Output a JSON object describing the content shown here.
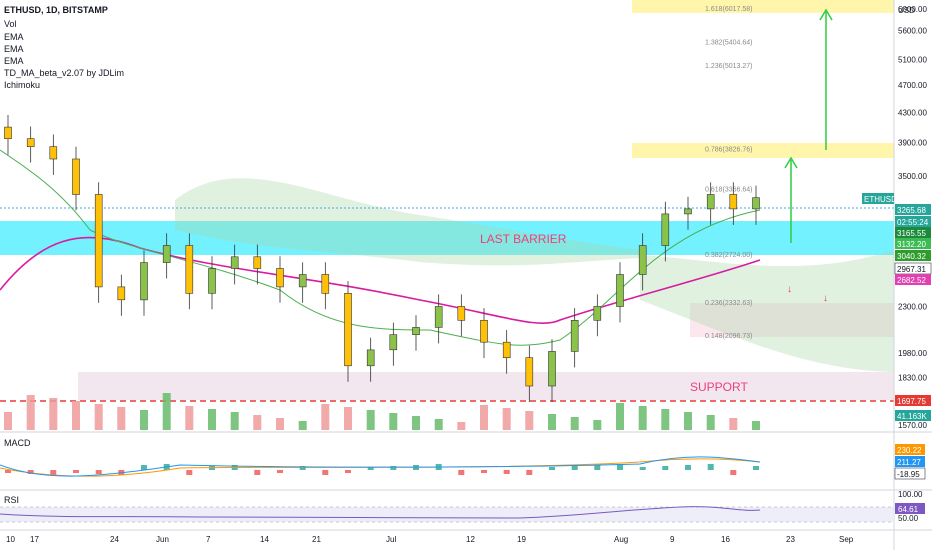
{
  "header": {
    "symbol": "ETHUSD, 1D, BITSTAMP",
    "indicators": [
      "Vol",
      "EMA",
      "EMA",
      "EMA",
      "TD_MA_beta_v2.07 by JDLim",
      "Ichimoku"
    ]
  },
  "currency": "USD",
  "zones": {
    "last_barrier": "LAST BARRIER",
    "support": "SUPPORT"
  },
  "fib_levels": [
    {
      "label": "1.618(6017.58)",
      "price": 6017.58
    },
    {
      "label": "1.382(5404.64)",
      "price": 5404.64
    },
    {
      "label": "1.236(5013.27)",
      "price": 5013.27
    },
    {
      "label": "0.786(3826.76)",
      "price": 3826.76
    },
    {
      "label": "0.618(3366.64)",
      "price": 3366.64
    },
    {
      "label": "0.382(2724.00)",
      "price": 2724.0
    },
    {
      "label": "0.236(2332.63)",
      "price": 2332.63
    },
    {
      "label": "0.148(2096.73)",
      "price": 2096.73
    }
  ],
  "price_axis": {
    "ticks": [
      "6000.00",
      "5600.00",
      "5100.00",
      "4700.00",
      "4300.00",
      "3900.00",
      "3500.00",
      "2500.00",
      "2300.00",
      "1980.00",
      "1830.00",
      "1570.00"
    ]
  },
  "price_tags": [
    {
      "text": "ETHUSD",
      "color": "#26a69a",
      "row": "label"
    },
    {
      "text": "3265.68",
      "color": "#26a69a"
    },
    {
      "text": "02:55:24",
      "color": "#26a69a"
    },
    {
      "text": "3165.55",
      "color": "#1b8a3a"
    },
    {
      "text": "3132.20",
      "color": "#3cba54"
    },
    {
      "text": "3040.32",
      "color": "#2e9d2e"
    },
    {
      "text": "2967.31",
      "color": "#ffffff"
    },
    {
      "text": "2682.52",
      "color": "#e040b0"
    },
    {
      "text": "1697.75",
      "color": "#e53935"
    },
    {
      "text": "41.163K",
      "color": "#26a69a"
    }
  ],
  "macd": {
    "label": "MACD",
    "values": [
      "230.22",
      "211.27",
      "-18.95"
    ],
    "colors": [
      "#ff9800",
      "#2196f3",
      "#ffffff"
    ]
  },
  "rsi": {
    "label": "RSI",
    "ticks": [
      "100.00",
      "50.00"
    ],
    "value": "64.61"
  },
  "time_axis": [
    "10",
    "17",
    "24",
    "Jun",
    "7",
    "14",
    "21",
    "Jul",
    "12",
    "19",
    "Aug",
    "9",
    "16",
    "23",
    "Sep"
  ],
  "chart_data": {
    "type": "candlestick",
    "symbol": "ETHUSD",
    "timeframe": "1D",
    "exchange": "BITSTAMP",
    "ylim": [
      1570,
      6100
    ],
    "log_scale": true,
    "last_price": 3265.68,
    "closes_approx": [
      {
        "date": "2021-05-10",
        "close": 3950
      },
      {
        "date": "2021-05-12",
        "close": 3850
      },
      {
        "date": "2021-05-14",
        "close": 3700
      },
      {
        "date": "2021-05-17",
        "close": 3300
      },
      {
        "date": "2021-05-19",
        "close": 2450
      },
      {
        "date": "2021-05-21",
        "close": 2350
      },
      {
        "date": "2021-05-24",
        "close": 2650
      },
      {
        "date": "2021-05-26",
        "close": 2800
      },
      {
        "date": "2021-05-29",
        "close": 2400
      },
      {
        "date": "2021-06-01",
        "close": 2600
      },
      {
        "date": "2021-06-04",
        "close": 2700
      },
      {
        "date": "2021-06-07",
        "close": 2600
      },
      {
        "date": "2021-06-10",
        "close": 2450
      },
      {
        "date": "2021-06-14",
        "close": 2550
      },
      {
        "date": "2021-06-17",
        "close": 2400
      },
      {
        "date": "2021-06-21",
        "close": 1900
      },
      {
        "date": "2021-06-24",
        "close": 2000
      },
      {
        "date": "2021-06-28",
        "close": 2100
      },
      {
        "date": "2021-07-01",
        "close": 2150
      },
      {
        "date": "2021-07-05",
        "close": 2300
      },
      {
        "date": "2021-07-08",
        "close": 2200
      },
      {
        "date": "2021-07-12",
        "close": 2050
      },
      {
        "date": "2021-07-15",
        "close": 1950
      },
      {
        "date": "2021-07-20",
        "close": 1780
      },
      {
        "date": "2021-07-22",
        "close": 1990
      },
      {
        "date": "2021-07-25",
        "close": 2200
      },
      {
        "date": "2021-07-28",
        "close": 2300
      },
      {
        "date": "2021-08-01",
        "close": 2550
      },
      {
        "date": "2021-08-04",
        "close": 2800
      },
      {
        "date": "2021-08-07",
        "close": 3100
      },
      {
        "date": "2021-08-10",
        "close": 3150
      },
      {
        "date": "2021-08-13",
        "close": 3300
      },
      {
        "date": "2021-08-16",
        "close": 3150
      },
      {
        "date": "2021-08-19",
        "close": 3265.68
      }
    ]
  }
}
